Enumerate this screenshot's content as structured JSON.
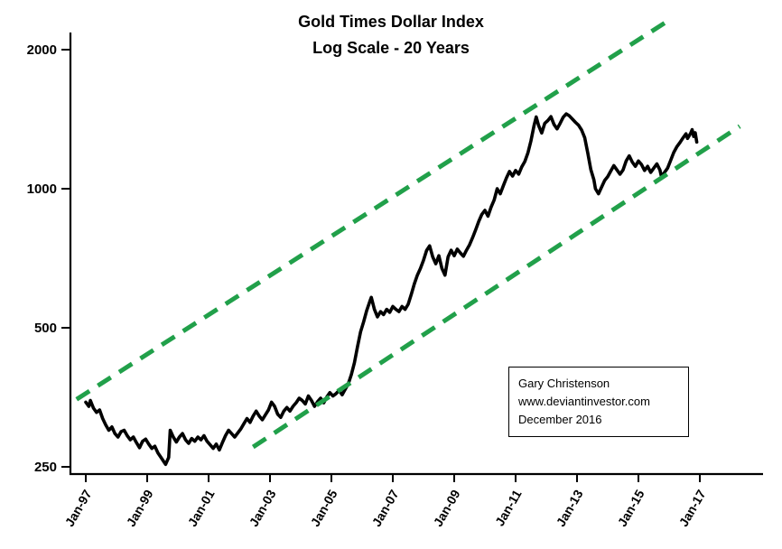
{
  "chart_data": {
    "type": "line",
    "title": "Gold Times Dollar Index",
    "subtitle": "Log Scale - 20 Years",
    "y_scale": "log",
    "ylim": [
      250,
      2000
    ],
    "y_ticks": [
      2000,
      1000,
      500,
      250
    ],
    "x_ticks": [
      {
        "label": "Jan-97",
        "year": 1997
      },
      {
        "label": "Jan-99",
        "year": 1999
      },
      {
        "label": "Jan-01",
        "year": 2001
      },
      {
        "label": "Jan-03",
        "year": 2003
      },
      {
        "label": "Jan-05",
        "year": 2005
      },
      {
        "label": "Jan-07",
        "year": 2007
      },
      {
        "label": "Jan-09",
        "year": 2009
      },
      {
        "label": "Jan-11",
        "year": 2011
      },
      {
        "label": "Jan-13",
        "year": 2013
      },
      {
        "label": "Jan-15",
        "year": 2015
      },
      {
        "label": "Jan-17",
        "year": 2017
      }
    ],
    "grid": false,
    "legend": false,
    "colors": {
      "series": "#000000",
      "trend": "#21A04A",
      "axis": "#000000"
    },
    "series": [
      {
        "name": "Gold Times Dollar Index",
        "color": "#000000",
        "points": [
          [
            1997.0,
            345
          ],
          [
            1997.1,
            338
          ],
          [
            1997.15,
            348
          ],
          [
            1997.25,
            335
          ],
          [
            1997.35,
            328
          ],
          [
            1997.45,
            332
          ],
          [
            1997.55,
            318
          ],
          [
            1997.65,
            308
          ],
          [
            1997.75,
            300
          ],
          [
            1997.85,
            305
          ],
          [
            1997.95,
            295
          ],
          [
            1998.05,
            290
          ],
          [
            1998.15,
            298
          ],
          [
            1998.25,
            300
          ],
          [
            1998.35,
            292
          ],
          [
            1998.45,
            286
          ],
          [
            1998.55,
            290
          ],
          [
            1998.65,
            282
          ],
          [
            1998.75,
            275
          ],
          [
            1998.85,
            284
          ],
          [
            1998.95,
            287
          ],
          [
            1999.05,
            280
          ],
          [
            1999.15,
            274
          ],
          [
            1999.25,
            277
          ],
          [
            1999.35,
            268
          ],
          [
            1999.45,
            262
          ],
          [
            1999.55,
            256
          ],
          [
            1999.6,
            253
          ],
          [
            1999.7,
            262
          ],
          [
            1999.75,
            300
          ],
          [
            1999.85,
            290
          ],
          [
            1999.95,
            283
          ],
          [
            2000.05,
            290
          ],
          [
            2000.15,
            295
          ],
          [
            2000.25,
            286
          ],
          [
            2000.35,
            281
          ],
          [
            2000.45,
            288
          ],
          [
            2000.55,
            284
          ],
          [
            2000.65,
            290
          ],
          [
            2000.75,
            286
          ],
          [
            2000.85,
            292
          ],
          [
            2000.95,
            284
          ],
          [
            2001.05,
            279
          ],
          [
            2001.15,
            274
          ],
          [
            2001.25,
            280
          ],
          [
            2001.35,
            272
          ],
          [
            2001.45,
            282
          ],
          [
            2001.55,
            292
          ],
          [
            2001.65,
            300
          ],
          [
            2001.75,
            295
          ],
          [
            2001.85,
            290
          ],
          [
            2001.95,
            296
          ],
          [
            2002.05,
            302
          ],
          [
            2002.15,
            310
          ],
          [
            2002.25,
            318
          ],
          [
            2002.35,
            312
          ],
          [
            2002.45,
            322
          ],
          [
            2002.55,
            330
          ],
          [
            2002.65,
            322
          ],
          [
            2002.75,
            316
          ],
          [
            2002.85,
            324
          ],
          [
            2002.95,
            332
          ],
          [
            2003.05,
            345
          ],
          [
            2003.15,
            338
          ],
          [
            2003.25,
            325
          ],
          [
            2003.35,
            320
          ],
          [
            2003.45,
            330
          ],
          [
            2003.55,
            336
          ],
          [
            2003.65,
            330
          ],
          [
            2003.75,
            338
          ],
          [
            2003.85,
            344
          ],
          [
            2003.95,
            352
          ],
          [
            2004.05,
            348
          ],
          [
            2004.15,
            342
          ],
          [
            2004.25,
            356
          ],
          [
            2004.35,
            348
          ],
          [
            2004.45,
            338
          ],
          [
            2004.55,
            346
          ],
          [
            2004.65,
            352
          ],
          [
            2004.75,
            344
          ],
          [
            2004.85,
            354
          ],
          [
            2004.95,
            362
          ],
          [
            2005.05,
            356
          ],
          [
            2005.15,
            360
          ],
          [
            2005.25,
            366
          ],
          [
            2005.35,
            358
          ],
          [
            2005.45,
            368
          ],
          [
            2005.55,
            378
          ],
          [
            2005.65,
            396
          ],
          [
            2005.75,
            420
          ],
          [
            2005.85,
            455
          ],
          [
            2005.95,
            490
          ],
          [
            2006.05,
            515
          ],
          [
            2006.15,
            545
          ],
          [
            2006.25,
            570
          ],
          [
            2006.3,
            582
          ],
          [
            2006.4,
            548
          ],
          [
            2006.5,
            528
          ],
          [
            2006.6,
            542
          ],
          [
            2006.7,
            534
          ],
          [
            2006.8,
            548
          ],
          [
            2006.9,
            540
          ],
          [
            2007.0,
            556
          ],
          [
            2007.1,
            548
          ],
          [
            2007.2,
            542
          ],
          [
            2007.3,
            556
          ],
          [
            2007.4,
            548
          ],
          [
            2007.5,
            562
          ],
          [
            2007.6,
            590
          ],
          [
            2007.7,
            622
          ],
          [
            2007.8,
            650
          ],
          [
            2007.9,
            672
          ],
          [
            2008.0,
            700
          ],
          [
            2008.1,
            735
          ],
          [
            2008.2,
            752
          ],
          [
            2008.3,
            712
          ],
          [
            2008.4,
            688
          ],
          [
            2008.5,
            716
          ],
          [
            2008.6,
            672
          ],
          [
            2008.7,
            650
          ],
          [
            2008.8,
            712
          ],
          [
            2008.9,
            736
          ],
          [
            2009.0,
            716
          ],
          [
            2009.1,
            740
          ],
          [
            2009.2,
            726
          ],
          [
            2009.3,
            714
          ],
          [
            2009.4,
            736
          ],
          [
            2009.5,
            756
          ],
          [
            2009.6,
            784
          ],
          [
            2009.7,
            815
          ],
          [
            2009.8,
            850
          ],
          [
            2009.9,
            880
          ],
          [
            2010.0,
            898
          ],
          [
            2010.1,
            872
          ],
          [
            2010.2,
            912
          ],
          [
            2010.3,
            945
          ],
          [
            2010.4,
            1000
          ],
          [
            2010.5,
            975
          ],
          [
            2010.6,
            1015
          ],
          [
            2010.7,
            1055
          ],
          [
            2010.8,
            1090
          ],
          [
            2010.9,
            1065
          ],
          [
            2011.0,
            1095
          ],
          [
            2011.1,
            1075
          ],
          [
            2011.2,
            1115
          ],
          [
            2011.3,
            1145
          ],
          [
            2011.4,
            1195
          ],
          [
            2011.5,
            1270
          ],
          [
            2011.6,
            1370
          ],
          [
            2011.67,
            1430
          ],
          [
            2011.75,
            1370
          ],
          [
            2011.85,
            1320
          ],
          [
            2011.95,
            1385
          ],
          [
            2012.05,
            1405
          ],
          [
            2012.15,
            1432
          ],
          [
            2012.25,
            1378
          ],
          [
            2012.35,
            1348
          ],
          [
            2012.45,
            1385
          ],
          [
            2012.55,
            1428
          ],
          [
            2012.65,
            1452
          ],
          [
            2012.75,
            1438
          ],
          [
            2012.85,
            1415
          ],
          [
            2012.95,
            1392
          ],
          [
            2013.05,
            1372
          ],
          [
            2013.15,
            1340
          ],
          [
            2013.25,
            1290
          ],
          [
            2013.35,
            1195
          ],
          [
            2013.45,
            1100
          ],
          [
            2013.55,
            1045
          ],
          [
            2013.6,
            1000
          ],
          [
            2013.7,
            975
          ],
          [
            2013.8,
            1008
          ],
          [
            2013.9,
            1042
          ],
          [
            2014.0,
            1062
          ],
          [
            2014.1,
            1092
          ],
          [
            2014.2,
            1122
          ],
          [
            2014.3,
            1098
          ],
          [
            2014.4,
            1075
          ],
          [
            2014.5,
            1098
          ],
          [
            2014.6,
            1148
          ],
          [
            2014.7,
            1178
          ],
          [
            2014.8,
            1142
          ],
          [
            2014.9,
            1118
          ],
          [
            2015.0,
            1148
          ],
          [
            2015.1,
            1128
          ],
          [
            2015.2,
            1095
          ],
          [
            2015.3,
            1118
          ],
          [
            2015.4,
            1085
          ],
          [
            2015.5,
            1108
          ],
          [
            2015.6,
            1132
          ],
          [
            2015.7,
            1098
          ],
          [
            2015.75,
            1062
          ],
          [
            2015.85,
            1085
          ],
          [
            2015.95,
            1108
          ],
          [
            2016.05,
            1152
          ],
          [
            2016.15,
            1198
          ],
          [
            2016.25,
            1232
          ],
          [
            2016.35,
            1258
          ],
          [
            2016.45,
            1288
          ],
          [
            2016.55,
            1315
          ],
          [
            2016.6,
            1285
          ],
          [
            2016.7,
            1318
          ],
          [
            2016.75,
            1342
          ],
          [
            2016.8,
            1298
          ],
          [
            2016.85,
            1322
          ],
          [
            2016.9,
            1262
          ]
        ]
      }
    ],
    "trend_lines": [
      {
        "name": "upper-channel",
        "color": "#21A04A",
        "style": "dashed",
        "points": [
          [
            1996.7,
            350
          ],
          [
            2016.1,
            2340
          ]
        ]
      },
      {
        "name": "lower-channel",
        "color": "#21A04A",
        "style": "dashed",
        "points": [
          [
            2002.45,
            276
          ],
          [
            2018.3,
            1365
          ]
        ]
      }
    ],
    "annotation": {
      "lines": [
        "Gary Christenson",
        "www.deviantinvestor.com",
        "December 2016"
      ]
    }
  }
}
